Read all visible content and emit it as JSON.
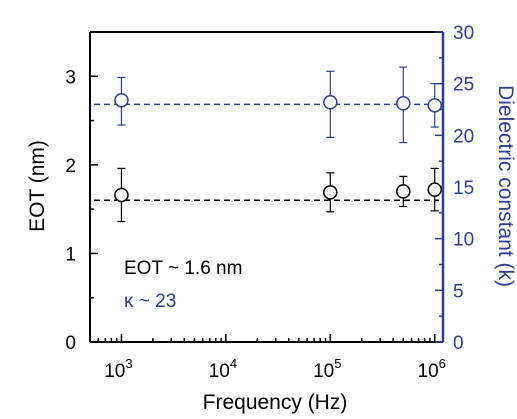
{
  "chart_data": {
    "type": "scatter",
    "x_scale": "log",
    "x_range": [
      500,
      1200000
    ],
    "xlabel": "Frequency (Hz)",
    "x_ticks": [
      {
        "value": 1000,
        "base": "10",
        "exp": "3"
      },
      {
        "value": 10000,
        "base": "10",
        "exp": "4"
      },
      {
        "value": 100000,
        "base": "10",
        "exp": "5"
      },
      {
        "value": 1000000,
        "base": "10",
        "exp": "6"
      }
    ],
    "y_left": {
      "label": "EOT (nm)",
      "range": [
        0,
        3.5
      ],
      "ticks": [
        "0",
        "1",
        "2",
        "3"
      ],
      "color": "#000000"
    },
    "y_right": {
      "label": "Dielectric constant (k)",
      "range": [
        0,
        30
      ],
      "ticks": [
        "0",
        "5",
        "10",
        "15",
        "20",
        "25",
        "30"
      ],
      "color": "#2e3e92"
    },
    "series": [
      {
        "axis": "left",
        "color": "#000000",
        "points": [
          {
            "x": 1000,
            "y": 1.66,
            "err_low": 1.36,
            "err_high": 1.96
          },
          {
            "x": 100000,
            "y": 1.69,
            "err_low": 1.47,
            "err_high": 1.91
          },
          {
            "x": 500000,
            "y": 1.7,
            "err_low": 1.53,
            "err_high": 1.87
          },
          {
            "x": 1000000,
            "y": 1.72,
            "err_low": 1.48,
            "err_high": 1.96
          }
        ],
        "reference": 1.6
      },
      {
        "axis": "right",
        "color": "#2e3e92",
        "points": [
          {
            "x": 1000,
            "y": 23.4,
            "err_low": 21.0,
            "err_high": 25.6
          },
          {
            "x": 100000,
            "y": 23.2,
            "err_low": 19.8,
            "err_high": 26.2
          },
          {
            "x": 500000,
            "y": 23.1,
            "err_low": 19.3,
            "err_high": 26.6
          },
          {
            "x": 1000000,
            "y": 22.9,
            "err_low": 20.8,
            "err_high": 25.0
          }
        ],
        "reference": 23
      }
    ],
    "annotations": [
      {
        "text": "EOT ~ 1.6 nm",
        "color": "#000000"
      },
      {
        "text": "κ ~ 23",
        "color": "#2e3e92"
      }
    ],
    "grid": false
  }
}
